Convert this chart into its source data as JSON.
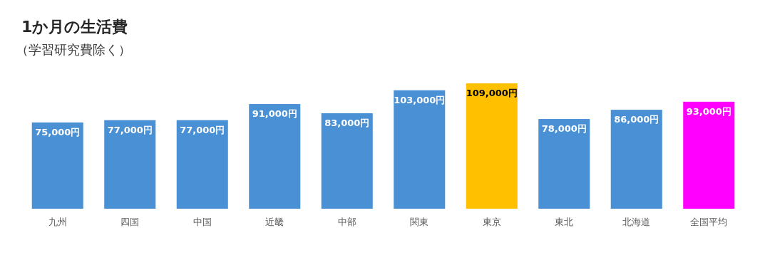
{
  "chart_data": {
    "type": "bar",
    "title": "1か月の生活費",
    "subtitle": "（学習研究費除く）",
    "categories": [
      "九州",
      "四国",
      "中国",
      "近畿",
      "中部",
      "関東",
      "東京",
      "東北",
      "北海道",
      "全国平均"
    ],
    "values": [
      75000,
      77000,
      77000,
      91000,
      83000,
      103000,
      109000,
      78000,
      86000,
      93000
    ],
    "colors": [
      "#4a90d4",
      "#4a90d4",
      "#4a90d4",
      "#4a90d4",
      "#4a90d4",
      "#4a90d4",
      "#ffc000",
      "#4a90d4",
      "#4a90d4",
      "#ff00ff"
    ],
    "value_labels": [
      "75,000円",
      "77,000円",
      "77,000円",
      "91,000円",
      "83,000円",
      "103,000円",
      "109,000円",
      "78,000円",
      "86,000円",
      "93,000円"
    ]
  }
}
